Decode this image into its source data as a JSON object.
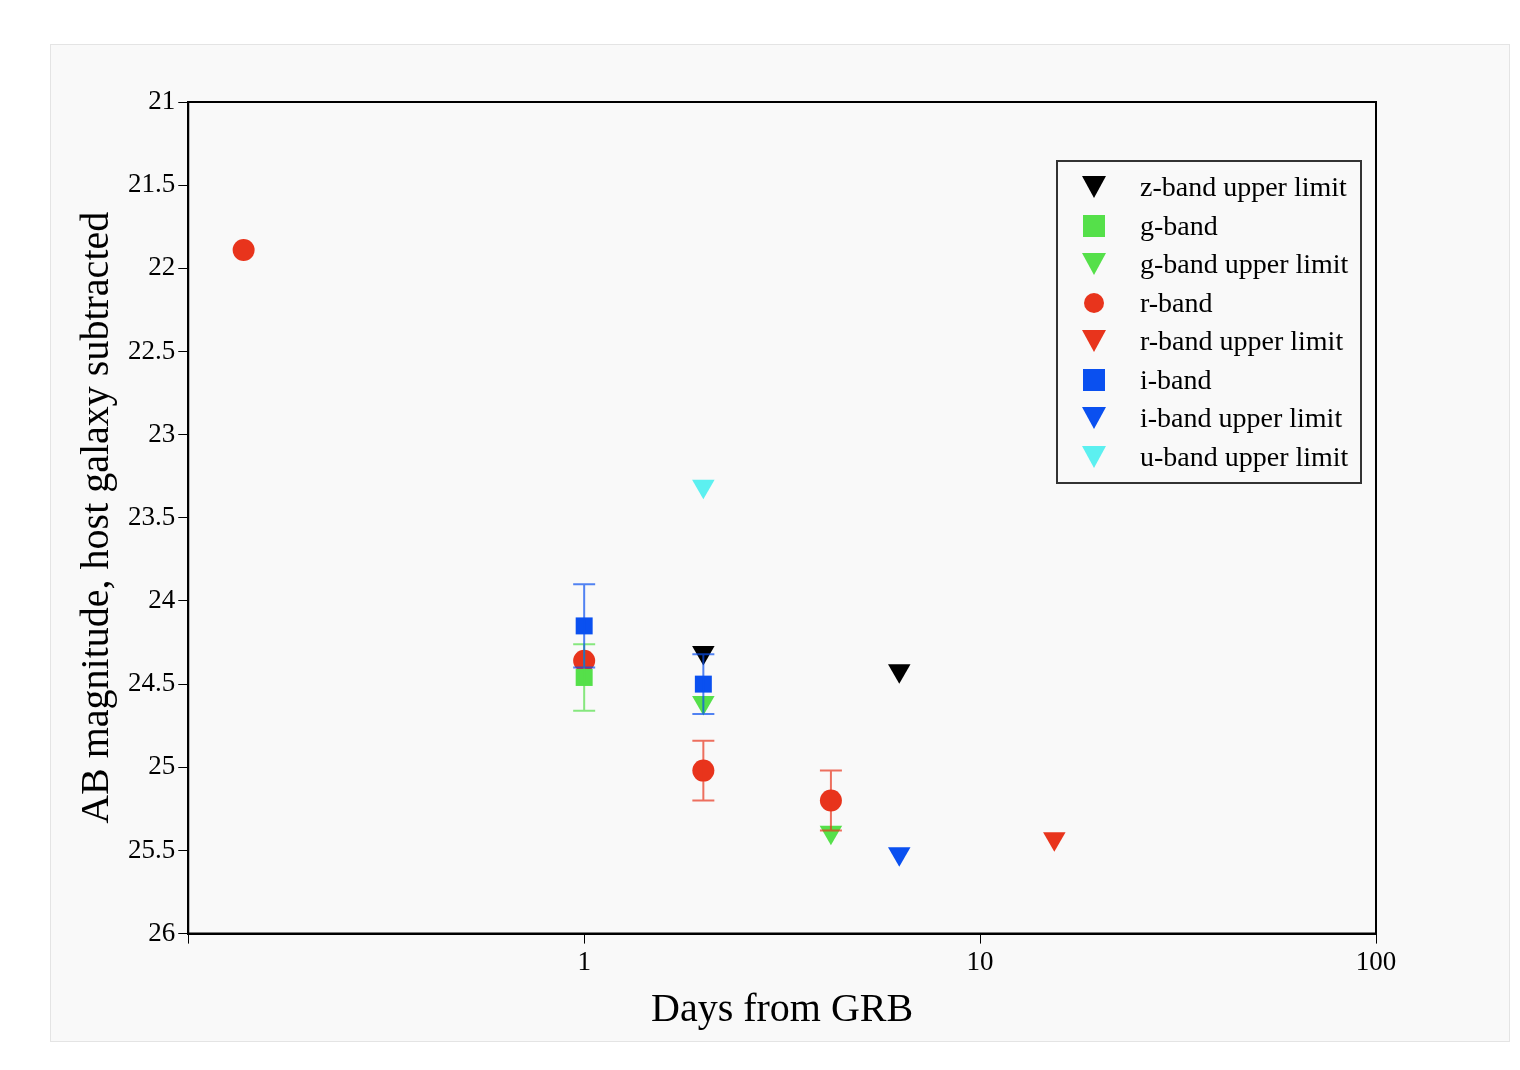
{
  "chart_data": {
    "type": "scatter",
    "xlabel": "Days from GRB",
    "ylabel": "AB magnitude, host galaxy subtracted",
    "log": "x",
    "xlim": [
      0.1,
      100
    ],
    "xticks": [
      {
        "value": 0.1,
        "label": null
      },
      1,
      10,
      100
    ],
    "ylim": [
      26,
      21
    ],
    "yticks": [
      21,
      21.5,
      22,
      22.5,
      23,
      23.5,
      24,
      24.5,
      25,
      25.5,
      26
    ],
    "grid": false,
    "legend": "top right",
    "series": [
      {
        "name": "z-band upper limit",
        "color": "#000000",
        "marker": "triangle",
        "x": [
          2,
          6.25
        ],
        "values": [
          24.31,
          24.42
        ]
      },
      {
        "name": "g-band",
        "color": "#55e04a",
        "marker": "square",
        "x": [
          1
        ],
        "values": [
          24.46
        ],
        "errors": [
          0.2
        ]
      },
      {
        "name": "g-band upper limit",
        "color": "#55e04a",
        "marker": "triangle",
        "x": [
          2,
          4.2
        ],
        "values": [
          24.61,
          25.39
        ]
      },
      {
        "name": "r-band",
        "color": "#e8341c",
        "marker": "circle",
        "x": [
          0.138,
          1,
          2,
          4.2
        ],
        "values": [
          21.89,
          24.36,
          25.02,
          25.2
        ],
        "errors": [
          null,
          null,
          0.18,
          0.18
        ]
      },
      {
        "name": "r-band upper limit",
        "color": "#e8341c",
        "marker": "triangle",
        "x": [
          15.4
        ],
        "values": [
          25.43
        ]
      },
      {
        "name": "i-band",
        "color": "#0a50f0",
        "marker": "square",
        "x": [
          1,
          2
        ],
        "values": [
          24.15,
          24.5
        ],
        "errors": [
          0.25,
          0.18
        ]
      },
      {
        "name": "i-band upper limit",
        "color": "#0a50f0",
        "marker": "triangle",
        "x": [
          6.25
        ],
        "values": [
          25.52
        ]
      },
      {
        "name": "u-band upper limit",
        "color": "#5cf0f0",
        "marker": "triangle",
        "x": [
          2
        ],
        "values": [
          23.31
        ]
      }
    ]
  }
}
